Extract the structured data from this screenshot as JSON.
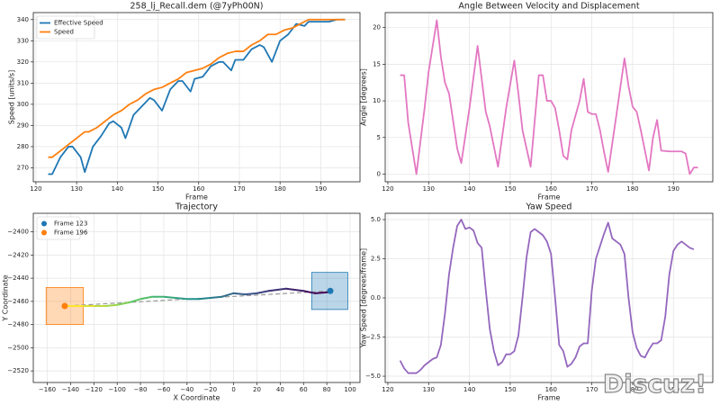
{
  "chart_data": [
    {
      "type": "line",
      "title": "258_lj_Recall.dem (@7yPh00N)",
      "x_label": "Frame",
      "y_label": "Speed [units/s]",
      "xlim": [
        119.35,
        199.65
      ],
      "ylim": [
        263.4,
        343.3
      ],
      "xticks": [
        120,
        130,
        140,
        150,
        160,
        170,
        180,
        190
      ],
      "yticks": [
        270,
        280,
        290,
        300,
        310,
        320,
        330,
        340
      ],
      "grid": true,
      "legend": "upper left",
      "series": [
        {
          "name": "Effective Speed",
          "color": "#1f77b4",
          "x": [
            123,
            124,
            126,
            128,
            129,
            131,
            132,
            134,
            136,
            138,
            139,
            141,
            142,
            144,
            146,
            148,
            149,
            151,
            153,
            155,
            156,
            158,
            159,
            161,
            163,
            165,
            166,
            168,
            169,
            171,
            173,
            175,
            176,
            178,
            180,
            182,
            184,
            186,
            187,
            189,
            192,
            194,
            196
          ],
          "values": [
            267,
            267,
            275,
            280,
            280,
            275,
            268,
            280,
            285,
            291,
            292,
            289,
            284,
            295,
            299,
            303,
            302,
            297,
            307,
            311,
            311,
            306,
            312,
            313,
            318,
            320,
            320,
            316,
            321,
            321,
            326,
            328,
            327,
            320,
            330,
            333,
            338,
            337,
            339,
            339,
            339,
            340,
            340
          ]
        },
        {
          "name": "Speed",
          "color": "#ff7f0e",
          "x": [
            123,
            124,
            126,
            128,
            130,
            132,
            133,
            135,
            137,
            139,
            141,
            143,
            145,
            147,
            149,
            151,
            153,
            155,
            157,
            159,
            161,
            163,
            165,
            167,
            169,
            171,
            173,
            175,
            177,
            179,
            181,
            183,
            185,
            187,
            190,
            193,
            196
          ],
          "values": [
            275,
            275,
            278,
            281,
            284,
            287,
            287,
            289,
            292,
            295,
            297,
            300,
            302,
            305,
            307,
            308,
            310,
            312,
            315,
            316,
            317,
            319,
            322,
            324,
            325,
            325,
            328,
            330,
            333,
            333,
            335,
            336,
            338,
            340,
            340,
            340,
            340
          ]
        }
      ]
    },
    {
      "type": "line",
      "title": "Angle Between Velocity and Displacement",
      "x_label": "Frame",
      "y_label": "Angle [degrees]",
      "xlim": [
        119.35,
        199.65
      ],
      "ylim": [
        -1.05,
        22.05
      ],
      "xticks": [
        120,
        130,
        140,
        150,
        160,
        170,
        180,
        190
      ],
      "yticks": [
        0,
        5,
        10,
        15,
        20
      ],
      "grid": true,
      "x": [
        123,
        124,
        125,
        127,
        129,
        130,
        132,
        133,
        134,
        135,
        137,
        138,
        140,
        142,
        143,
        144,
        145,
        147,
        149,
        151,
        152,
        153,
        155,
        157,
        158,
        159,
        160,
        161,
        162,
        163,
        164,
        165,
        167,
        168,
        169,
        170,
        171,
        172,
        173,
        174,
        176,
        178,
        179,
        180,
        181,
        182,
        184,
        185,
        186,
        187,
        189,
        192,
        193,
        194,
        195,
        196
      ],
      "series": [
        {
          "color": "#e377c2",
          "values": [
            13.5,
            13.5,
            7,
            0,
            9,
            14,
            21,
            16,
            12.5,
            11,
            3.5,
            1.5,
            9,
            17.5,
            13,
            8.5,
            6.5,
            1,
            9,
            15.5,
            11,
            6,
            1,
            13.5,
            13.5,
            10,
            10,
            9,
            6,
            2.5,
            2,
            6,
            10,
            13,
            8.5,
            8.2,
            8.2,
            6,
            3,
            0.3,
            8,
            15.8,
            12,
            9.2,
            8.5,
            6,
            0.5,
            5,
            7.4,
            3.2,
            3.1,
            3.1,
            2.8,
            0,
            0.9,
            0.9
          ]
        }
      ]
    },
    {
      "type": "trajectory",
      "title": "Trajectory",
      "x_label": "X Coordinate",
      "y_label": "Y Coordinate",
      "xlim": [
        -172,
        108.5
      ],
      "ylim": [
        -2530,
        -2384
      ],
      "grid": true,
      "legend": "upper left",
      "colormap": "viridis",
      "xticks": [
        {
          "value": -160,
          "label": "−160"
        },
        {
          "value": -140,
          "label": "−140"
        },
        {
          "value": -120,
          "label": "−120"
        },
        {
          "value": -100,
          "label": "−100"
        },
        {
          "value": -80,
          "label": "−80"
        },
        {
          "value": -60,
          "label": "−60"
        },
        {
          "value": -40,
          "label": "−40"
        },
        {
          "value": -20,
          "label": "−20"
        },
        0,
        20,
        40,
        60,
        80,
        100
      ],
      "yticks": [
        {
          "value": -2520,
          "label": "−2520"
        },
        {
          "value": -2500,
          "label": "−2500"
        },
        {
          "value": -2480,
          "label": "−2480"
        },
        {
          "value": -2460,
          "label": "−2460"
        },
        {
          "value": -2440,
          "label": "−2440"
        },
        {
          "value": -2420,
          "label": "−2420"
        },
        {
          "value": -2400,
          "label": "−2400"
        }
      ],
      "series": [
        {
          "x": [
            83,
            70,
            60,
            45,
            30,
            20,
            10,
            0,
            -10,
            -20,
            -30,
            -40,
            -50,
            -60,
            -70,
            -80,
            -90,
            -100,
            -110,
            -120,
            -130,
            -145
          ],
          "values": [
            -2452,
            -2453,
            -2451,
            -2449,
            -2451,
            -2453,
            -2454,
            -2453,
            -2456,
            -2457,
            -2458,
            -2458,
            -2457,
            -2456,
            -2456,
            -2458,
            -2461,
            -2463,
            -2464,
            -2464,
            -2464,
            -2464
          ]
        }
      ],
      "points": [
        {
          "name": "Frame 123",
          "color": "#1f77b4",
          "x": 83,
          "y": -2451
        },
        {
          "name": "Frame 196",
          "color": "#ff7f0e",
          "x": -145,
          "y": -2464
        }
      ],
      "boxes": [
        {
          "color": "#1f77b4",
          "x": [
            67,
            98
          ],
          "y": [
            -2467,
            -2435
          ]
        },
        {
          "color": "#ff7f0e",
          "x": [
            -161,
            -129
          ],
          "y": [
            -2480,
            -2448
          ]
        }
      ]
    },
    {
      "type": "line",
      "title": "Yaw Speed",
      "x_label": "Frame",
      "y_label": "Yaw Speed [degrees/frame]",
      "xlim": [
        119.35,
        199.65
      ],
      "ylim": [
        -5.4,
        5.4
      ],
      "xticks": [
        120,
        130,
        140,
        150,
        160,
        170,
        180,
        190
      ],
      "yticks": [
        {
          "value": -5,
          "label": "−5.0"
        },
        {
          "value": -2.5,
          "label": "−2.5"
        },
        {
          "value": 0,
          "label": "0.0"
        },
        {
          "value": 2.5,
          "label": "2.5"
        },
        {
          "value": 5,
          "label": "5.0"
        }
      ],
      "grid": true,
      "x": [
        123,
        124,
        125,
        126,
        127,
        128,
        129,
        130,
        131,
        132,
        133,
        134,
        135,
        136,
        137,
        138,
        139,
        140,
        141,
        142,
        143,
        144,
        145,
        146,
        147,
        148,
        149,
        150,
        151,
        152,
        153,
        154,
        155,
        156,
        157,
        158,
        159,
        160,
        161,
        162,
        163,
        164,
        165,
        166,
        167,
        168,
        169,
        170,
        171,
        172,
        173,
        174,
        175,
        176,
        177,
        178,
        179,
        180,
        181,
        182,
        183,
        184,
        185,
        186,
        187,
        188,
        189,
        190,
        191,
        192,
        193,
        194,
        195
      ],
      "series": [
        {
          "color": "#9467bd",
          "values": [
            -4,
            -4.5,
            -4.8,
            -4.8,
            -4.8,
            -4.6,
            -4.3,
            -4.1,
            -3.9,
            -3.8,
            -3,
            -1,
            1.5,
            3.2,
            4.6,
            5,
            4.4,
            4.5,
            4.3,
            3.5,
            3.2,
            0.5,
            -2,
            -3.4,
            -4.3,
            -4.1,
            -3.6,
            -3.6,
            -3.4,
            -2.4,
            0,
            2.6,
            4.2,
            4.4,
            4.2,
            4,
            3.6,
            2.8,
            0,
            -3,
            -3.4,
            -4.4,
            -4.2,
            -3.8,
            -3.1,
            -2.9,
            -2.9,
            0.5,
            2.5,
            3.3,
            4.1,
            4.8,
            3.8,
            3.6,
            3.4,
            2.8,
            0,
            -2.2,
            -3.2,
            -3.7,
            -3.8,
            -3.3,
            -2.9,
            -2.9,
            -2.7,
            -1.2,
            1.5,
            3,
            3.4,
            3.6,
            3.4,
            3.2,
            3.1
          ]
        }
      ]
    }
  ],
  "watermark": "Discuz!"
}
